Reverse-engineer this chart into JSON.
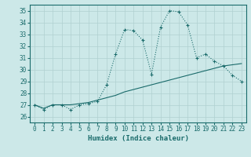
{
  "title": "",
  "xlabel": "Humidex (Indice chaleur)",
  "ylabel": "",
  "background_color": "#cce8e8",
  "grid_color": "#b0d0d0",
  "line_color": "#1a6b6b",
  "xlim": [
    -0.5,
    23.5
  ],
  "ylim": [
    25.5,
    35.5
  ],
  "yticks": [
    26,
    27,
    28,
    29,
    30,
    31,
    32,
    33,
    34,
    35
  ],
  "xticks": [
    0,
    1,
    2,
    3,
    4,
    5,
    6,
    7,
    8,
    9,
    10,
    11,
    12,
    13,
    14,
    15,
    16,
    17,
    18,
    19,
    20,
    21,
    22,
    23
  ],
  "series1_x": [
    0,
    1,
    2,
    3,
    4,
    5,
    6,
    7,
    8,
    9,
    10,
    11,
    12,
    13,
    14,
    15,
    16,
    17,
    18,
    19,
    20,
    21,
    22,
    23
  ],
  "series1_y": [
    27.0,
    26.6,
    27.0,
    27.0,
    26.6,
    27.0,
    27.1,
    27.3,
    28.7,
    31.3,
    33.4,
    33.3,
    32.5,
    29.6,
    33.6,
    35.0,
    34.9,
    33.8,
    31.0,
    31.3,
    30.7,
    30.3,
    29.5,
    29.0
  ],
  "series2_x": [
    0,
    1,
    2,
    3,
    4,
    5,
    6,
    7,
    8,
    9,
    10,
    11,
    12,
    13,
    14,
    15,
    16,
    17,
    18,
    19,
    20,
    21,
    22,
    23
  ],
  "series2_y": [
    27.0,
    26.7,
    27.0,
    27.0,
    27.0,
    27.1,
    27.2,
    27.4,
    27.6,
    27.8,
    28.1,
    28.3,
    28.5,
    28.7,
    28.9,
    29.1,
    29.3,
    29.5,
    29.7,
    29.9,
    30.1,
    30.3,
    30.4,
    30.5
  ],
  "xlabel_fontsize": 6.5,
  "tick_fontsize": 5.5
}
